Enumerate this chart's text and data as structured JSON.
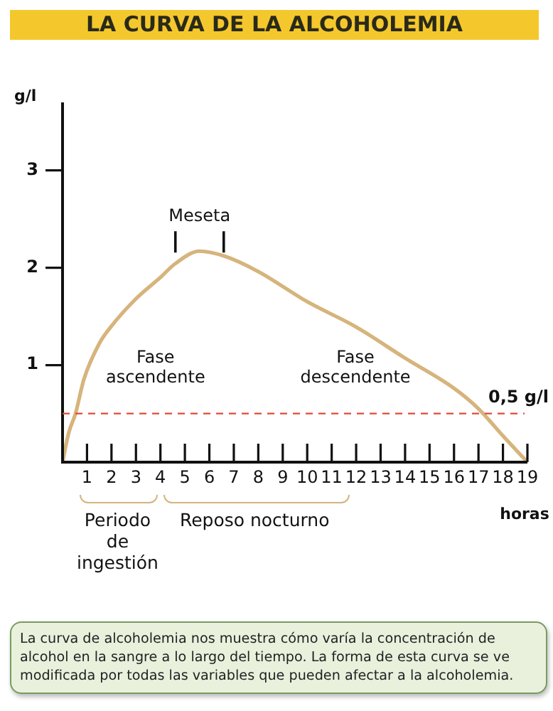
{
  "chart_data": {
    "type": "line",
    "title": "LA CURVA DE LA ALCOHOLEMIA",
    "xlabel": "horas",
    "ylabel": "g/l",
    "x": [
      0,
      0.25,
      0.53,
      0.87,
      1.5,
      2,
      3,
      4,
      4.6,
      5.6,
      6.6,
      8,
      10,
      12,
      14,
      16,
      17,
      18,
      19
    ],
    "series": [
      {
        "color": "#d6b47c",
        "values": [
          0,
          0.3,
          0.5,
          0.85,
          1.22,
          1.4,
          1.68,
          1.9,
          2.04,
          2.17,
          2.12,
          1.96,
          1.65,
          1.39,
          1.07,
          0.76,
          0.55,
          0.27,
          0
        ]
      }
    ],
    "xlim": [
      0,
      19
    ],
    "xticks": [
      1,
      2,
      3,
      4,
      5,
      6,
      7,
      8,
      9,
      10,
      11,
      12,
      13,
      14,
      15,
      16,
      17,
      18,
      19
    ],
    "ylim": [
      0,
      3.7
    ],
    "yticks": [
      1,
      2,
      3
    ],
    "grid": false,
    "legend": false,
    "marker": "none",
    "line_style": "solid",
    "ref_lines": [
      {
        "axis": "y",
        "value": 0.5,
        "label": "0,5 g/l",
        "color": "#e04a3a",
        "line_style": "dashed"
      }
    ],
    "annotations": [
      {
        "text": "Meseta",
        "x": 5.6,
        "y": 2.17
      },
      "Fase ascendente",
      "Fase descendente",
      "Periodo de ingestión",
      "Reposo nocturno",
      "La curva de alcoholemia nos muestra cómo varía la concentración de alcohol en la sangre a lo largo del tiempo. La forma de esta curva se ve modificada por todas las variables que pueden afectar a la alcoholemia."
    ]
  }
}
